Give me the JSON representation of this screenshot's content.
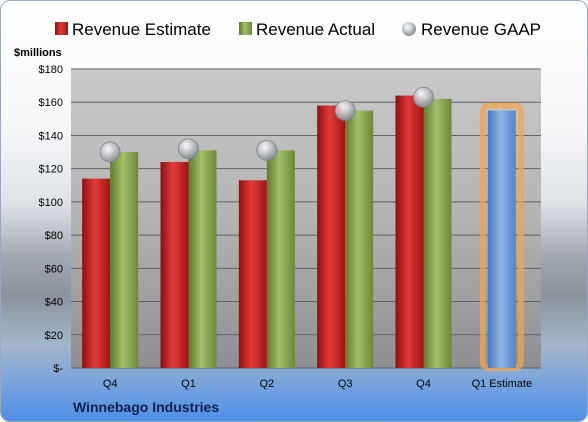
{
  "chart_data": {
    "type": "bar",
    "title": "",
    "ylabel": "$millions",
    "footer": "Winnebago Industries",
    "categories": [
      "Q4",
      "Q1",
      "Q2",
      "Q3",
      "Q4",
      "Q1 Estimate"
    ],
    "series": [
      {
        "name": "Revenue Estimate",
        "kind": "bar",
        "color": "#cc1f1f",
        "values": [
          114,
          124,
          113,
          158,
          164,
          null
        ]
      },
      {
        "name": "Revenue Actual",
        "kind": "bar",
        "color": "#8aa64f",
        "values": [
          130,
          131,
          131,
          155,
          162,
          null
        ]
      },
      {
        "name": "Revenue GAAP",
        "kind": "marker",
        "color": "#b8bcc4",
        "values": [
          130,
          132,
          131,
          155,
          163,
          null
        ]
      },
      {
        "name": "Q1 Estimate",
        "kind": "highlight-bar",
        "color": "#6f9bd6",
        "values": [
          null,
          null,
          null,
          null,
          null,
          155
        ]
      }
    ],
    "ylim": [
      0,
      180
    ],
    "yticks": [
      0,
      20,
      40,
      60,
      80,
      100,
      120,
      140,
      160,
      180
    ],
    "ytick_labels": [
      "$-",
      "$20",
      "$40",
      "$60",
      "$80",
      "$100",
      "$120",
      "$140",
      "$160",
      "$180"
    ],
    "grid": true,
    "legend_position": "top"
  }
}
